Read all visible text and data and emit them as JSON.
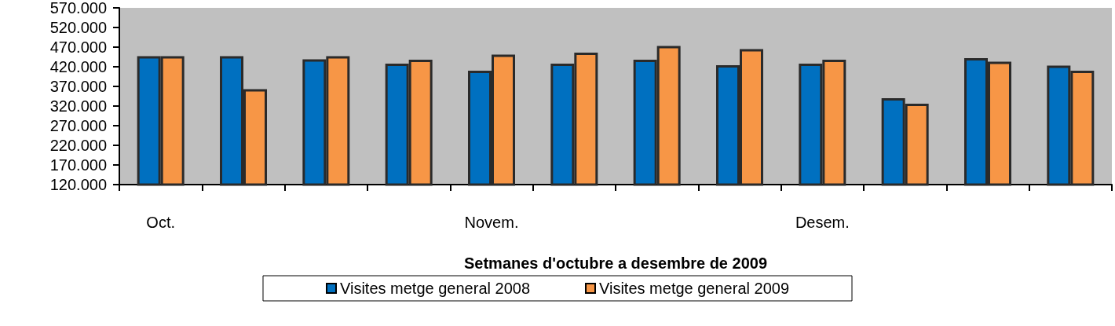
{
  "chart_data": {
    "type": "bar",
    "xlabel": "Setmanes d'octubre a desembre de 2009",
    "categories": [
      "Oct.",
      null,
      null,
      null,
      "Novem.",
      null,
      null,
      null,
      "Desem.",
      null,
      null,
      null
    ],
    "series": [
      {
        "name": "Visites metge general 2008",
        "color": "#0070c0",
        "values": [
          447000,
          447000,
          439000,
          428000,
          410000,
          428000,
          438000,
          424000,
          428000,
          340000,
          442000,
          423000
        ]
      },
      {
        "name": "Visites metge general 2009",
        "color": "#f79646",
        "values": [
          447000,
          363000,
          447000,
          438000,
          451000,
          456000,
          473000,
          465000,
          438000,
          326000,
          433000,
          410000
        ]
      }
    ],
    "ylim": [
      120000,
      570000
    ],
    "yticks": [
      {
        "value": 120000,
        "label": "120.000"
      },
      {
        "value": 170000,
        "label": "170.000"
      },
      {
        "value": 220000,
        "label": "220.000"
      },
      {
        "value": 270000,
        "label": "270.000"
      },
      {
        "value": 320000,
        "label": "320.000"
      },
      {
        "value": 370000,
        "label": "370.000"
      },
      {
        "value": 420000,
        "label": "420.000"
      },
      {
        "value": 470000,
        "label": "470.000"
      },
      {
        "value": 520000,
        "label": "520.000"
      },
      {
        "value": 570000,
        "label": "570.000"
      }
    ],
    "grid": false,
    "legend": "bottom"
  }
}
